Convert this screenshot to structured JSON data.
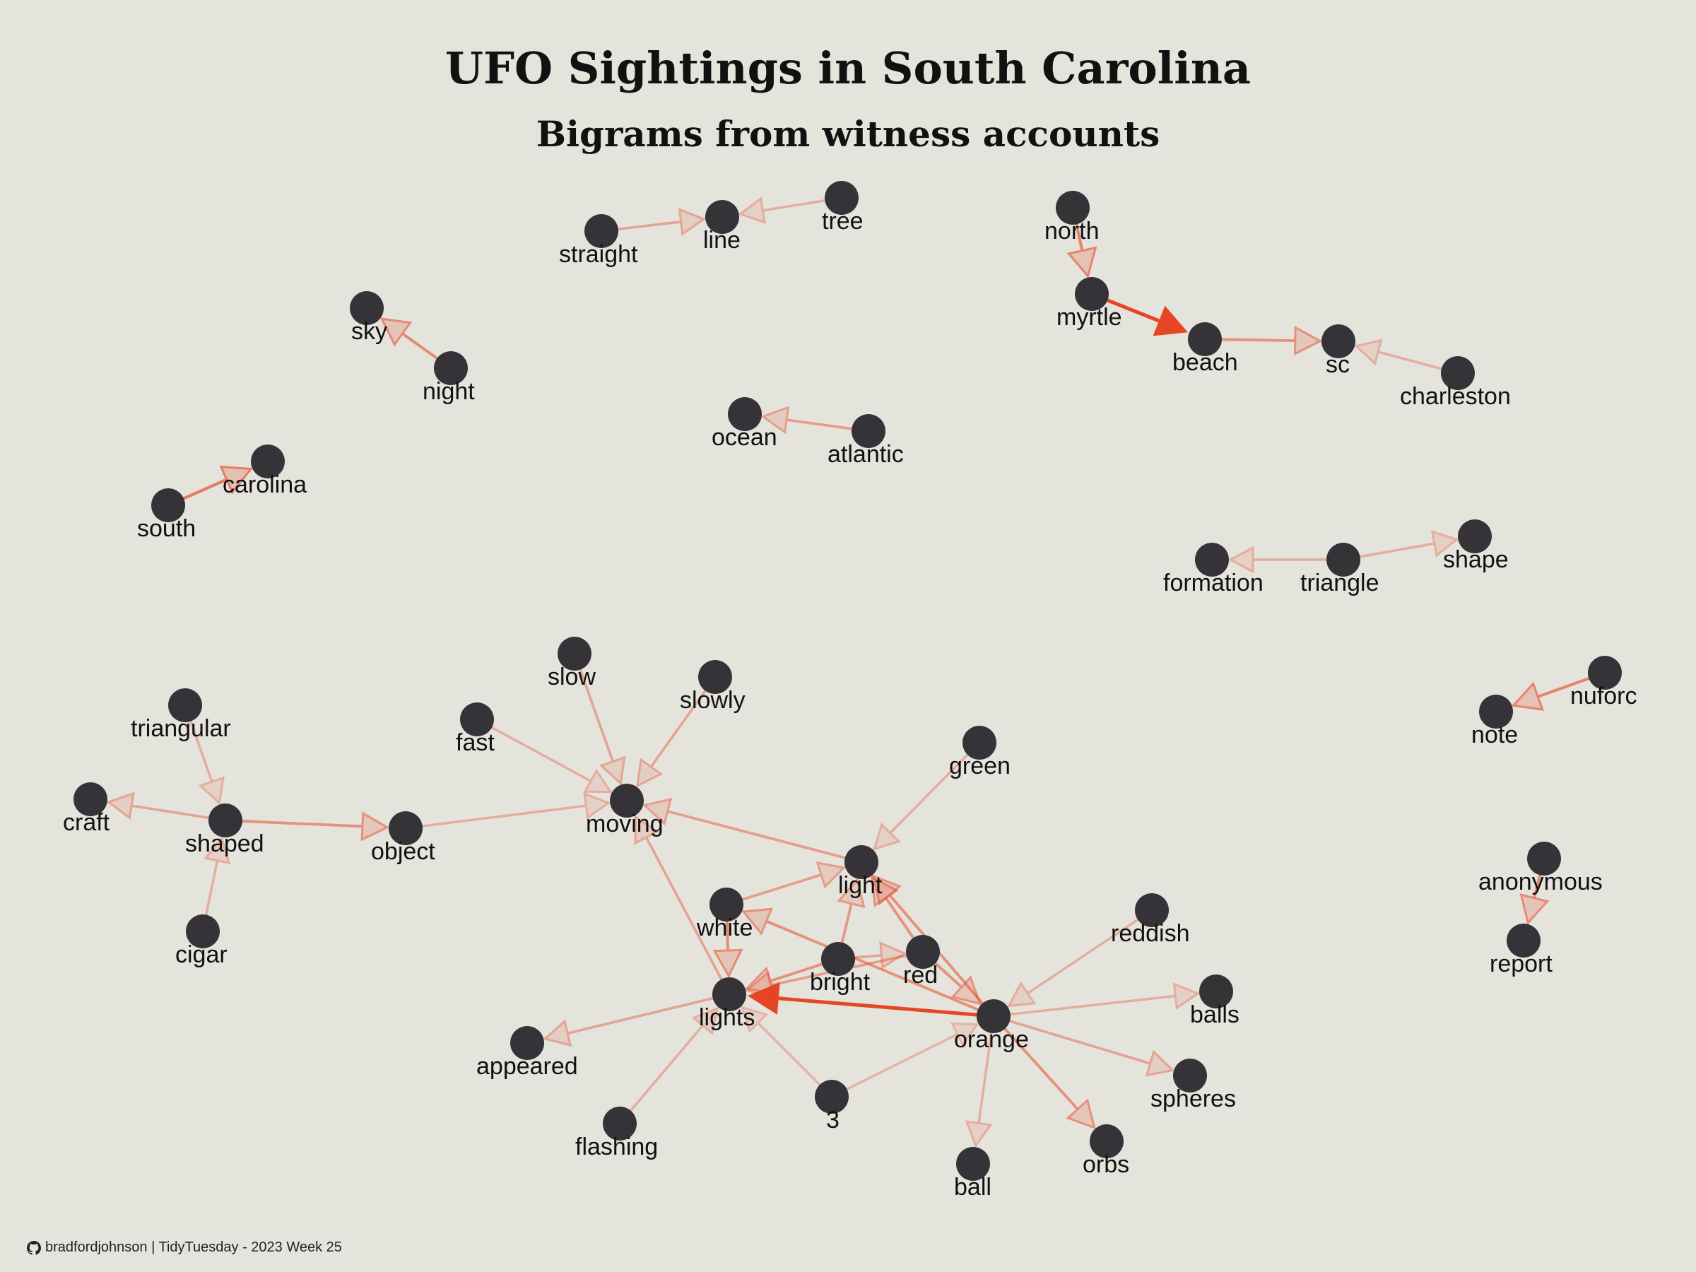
{
  "title": "UFO Sightings in South Carolina",
  "subtitle": "Bigrams from witness accounts",
  "caption": {
    "icon": "github-icon",
    "text": "bradfordjohnson | TidyTuesday - 2023 Week 25"
  },
  "colors": {
    "background": "#e4e3dc",
    "node": "#353337",
    "edge": "#e6411e"
  },
  "nodes": [
    {
      "id": "straight",
      "label": "straight"
    },
    {
      "id": "line",
      "label": "line"
    },
    {
      "id": "tree",
      "label": "tree"
    },
    {
      "id": "north",
      "label": "north"
    },
    {
      "id": "myrtle",
      "label": "myrtle"
    },
    {
      "id": "beach",
      "label": "beach"
    },
    {
      "id": "sc",
      "label": "sc"
    },
    {
      "id": "charleston",
      "label": "charleston"
    },
    {
      "id": "sky",
      "label": "sky"
    },
    {
      "id": "night",
      "label": "night"
    },
    {
      "id": "ocean",
      "label": "ocean"
    },
    {
      "id": "atlantic",
      "label": "atlantic"
    },
    {
      "id": "carolina",
      "label": "carolina"
    },
    {
      "id": "south",
      "label": "south"
    },
    {
      "id": "formation",
      "label": "formation"
    },
    {
      "id": "triangle",
      "label": "triangle"
    },
    {
      "id": "shape",
      "label": "shape"
    },
    {
      "id": "slow",
      "label": "slow"
    },
    {
      "id": "slowly",
      "label": "slowly"
    },
    {
      "id": "fast",
      "label": "fast"
    },
    {
      "id": "triangular",
      "label": "triangular"
    },
    {
      "id": "craft",
      "label": "craft"
    },
    {
      "id": "shaped",
      "label": "shaped"
    },
    {
      "id": "object",
      "label": "object"
    },
    {
      "id": "moving",
      "label": "moving"
    },
    {
      "id": "cigar",
      "label": "cigar"
    },
    {
      "id": "nuforc",
      "label": "nuforc"
    },
    {
      "id": "note",
      "label": "note"
    },
    {
      "id": "green",
      "label": "green"
    },
    {
      "id": "light",
      "label": "light"
    },
    {
      "id": "white",
      "label": "white"
    },
    {
      "id": "bright",
      "label": "bright"
    },
    {
      "id": "red",
      "label": "red"
    },
    {
      "id": "reddish",
      "label": "reddish"
    },
    {
      "id": "lights",
      "label": "lights"
    },
    {
      "id": "orange",
      "label": "orange"
    },
    {
      "id": "balls",
      "label": "balls"
    },
    {
      "id": "appeared",
      "label": "appeared"
    },
    {
      "id": "flashing",
      "label": "flashing"
    },
    {
      "id": "3",
      "label": "3"
    },
    {
      "id": "spheres",
      "label": "spheres"
    },
    {
      "id": "ball",
      "label": "ball"
    },
    {
      "id": "orbs",
      "label": "orbs"
    },
    {
      "id": "anonymous",
      "label": "anonymous"
    },
    {
      "id": "report",
      "label": "report"
    }
  ],
  "edges": [
    {
      "from": "straight",
      "to": "line",
      "strength": 0.3
    },
    {
      "from": "tree",
      "to": "line",
      "strength": 0.25
    },
    {
      "from": "north",
      "to": "myrtle",
      "strength": 0.55
    },
    {
      "from": "myrtle",
      "to": "beach",
      "strength": 1.0
    },
    {
      "from": "beach",
      "to": "sc",
      "strength": 0.45
    },
    {
      "from": "charleston",
      "to": "sc",
      "strength": 0.25
    },
    {
      "from": "night",
      "to": "sky",
      "strength": 0.5
    },
    {
      "from": "atlantic",
      "to": "ocean",
      "strength": 0.35
    },
    {
      "from": "south",
      "to": "carolina",
      "strength": 0.6
    },
    {
      "from": "triangle",
      "to": "formation",
      "strength": 0.25
    },
    {
      "from": "triangle",
      "to": "shape",
      "strength": 0.25
    },
    {
      "from": "slow",
      "to": "moving",
      "strength": 0.3
    },
    {
      "from": "slowly",
      "to": "moving",
      "strength": 0.3
    },
    {
      "from": "fast",
      "to": "moving",
      "strength": 0.25
    },
    {
      "from": "object",
      "to": "moving",
      "strength": 0.25
    },
    {
      "from": "light",
      "to": "moving",
      "strength": 0.35
    },
    {
      "from": "lights",
      "to": "moving",
      "strength": 0.3
    },
    {
      "from": "triangular",
      "to": "shaped",
      "strength": 0.25
    },
    {
      "from": "shaped",
      "to": "craft",
      "strength": 0.3
    },
    {
      "from": "shaped",
      "to": "object",
      "strength": 0.45
    },
    {
      "from": "cigar",
      "to": "shaped",
      "strength": 0.25
    },
    {
      "from": "nuforc",
      "to": "note",
      "strength": 0.55
    },
    {
      "from": "anonymous",
      "to": "report",
      "strength": 0.5
    },
    {
      "from": "green",
      "to": "light",
      "strength": 0.25
    },
    {
      "from": "white",
      "to": "light",
      "strength": 0.35
    },
    {
      "from": "bright",
      "to": "light",
      "strength": 0.4
    },
    {
      "from": "red",
      "to": "light",
      "strength": 0.45
    },
    {
      "from": "orange",
      "to": "light",
      "strength": 0.45
    },
    {
      "from": "white",
      "to": "lights",
      "strength": 0.5
    },
    {
      "from": "bright",
      "to": "lights",
      "strength": 0.45
    },
    {
      "from": "red",
      "to": "lights",
      "strength": 0.35
    },
    {
      "from": "orange",
      "to": "lights",
      "strength": 1.0
    },
    {
      "from": "orange",
      "to": "white",
      "strength": 0.45
    },
    {
      "from": "red",
      "to": "orange",
      "strength": 0.45
    },
    {
      "from": "bright",
      "to": "red",
      "strength": 0.3
    },
    {
      "from": "lights",
      "to": "appeared",
      "strength": 0.3
    },
    {
      "from": "flashing",
      "to": "lights",
      "strength": 0.25
    },
    {
      "from": "3",
      "to": "lights",
      "strength": 0.2
    },
    {
      "from": "3",
      "to": "orange",
      "strength": 0.2
    },
    {
      "from": "reddish",
      "to": "orange",
      "strength": 0.25
    },
    {
      "from": "orange",
      "to": "balls",
      "strength": 0.25
    },
    {
      "from": "orange",
      "to": "spheres",
      "strength": 0.3
    },
    {
      "from": "orange",
      "to": "ball",
      "strength": 0.25
    },
    {
      "from": "orange",
      "to": "orbs",
      "strength": 0.45
    }
  ]
}
